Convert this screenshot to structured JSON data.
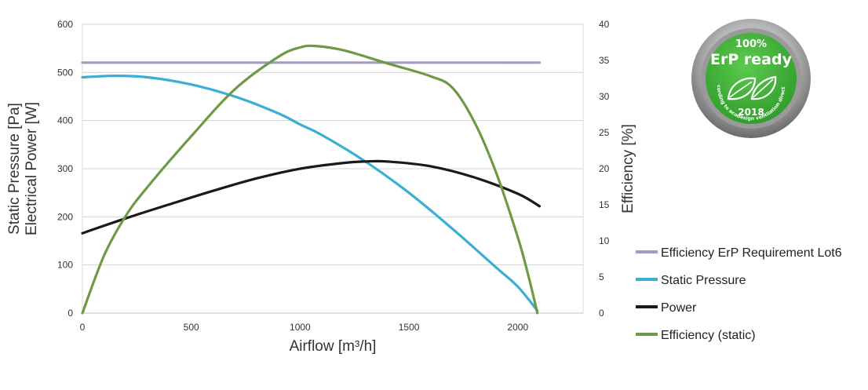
{
  "chart_data": {
    "type": "line",
    "xlabel": "Airflow [m³/h]",
    "ylabel_left": [
      "Static Pressure [Pa]",
      "Electrical Power [W]"
    ],
    "ylabel_right": "Efficiency [%]",
    "xlim": [
      0,
      2300
    ],
    "xticks": [
      0,
      500,
      1000,
      1500,
      2000
    ],
    "ylim_left": [
      0,
      600
    ],
    "yticks_left": [
      0,
      100,
      200,
      300,
      400,
      500,
      600
    ],
    "ylim_right": [
      0,
      40
    ],
    "yticks_right": [
      0,
      5,
      10,
      15,
      20,
      25,
      30,
      35,
      40
    ],
    "grid": "horizontal",
    "legend_position": "right",
    "series": [
      {
        "name": "Efficiency ErP Requirement Lot6",
        "axis": "right",
        "color": "#a09bbf",
        "x": [
          0,
          2100
        ],
        "y": [
          34.7,
          34.7
        ]
      },
      {
        "name": "Static Pressure",
        "axis": "left",
        "color": "#3aaed3",
        "x": [
          0,
          150,
          300,
          500,
          700,
          900,
          1000,
          1100,
          1300,
          1500,
          1700,
          1900,
          2000,
          2090
        ],
        "y": [
          490,
          493,
          490,
          475,
          450,
          415,
          392,
          370,
          315,
          250,
          175,
          95,
          55,
          5
        ]
      },
      {
        "name": "Power",
        "axis": "left",
        "color": "#1a1a1a",
        "x": [
          0,
          200,
          400,
          600,
          800,
          1000,
          1200,
          1300,
          1400,
          1600,
          1800,
          2000,
          2100
        ],
        "y": [
          166,
          197,
          226,
          254,
          280,
          300,
          312,
          315,
          315,
          305,
          282,
          248,
          222
        ]
      },
      {
        "name": "Efficiency (static)",
        "axis": "right",
        "color": "#6e9a45",
        "x": [
          0,
          100,
          200,
          300,
          500,
          700,
          900,
          1000,
          1070,
          1200,
          1400,
          1600,
          1700,
          1800,
          1900,
          2000,
          2050,
          2090
        ],
        "y": [
          0,
          8,
          13.5,
          17.5,
          24.5,
          31,
          35.5,
          36.8,
          37,
          36.4,
          34.6,
          32.8,
          31.2,
          26.5,
          19.5,
          10.5,
          5,
          0
        ]
      }
    ]
  },
  "badge": {
    "line1": "100%",
    "line2": "ErP ready",
    "year": "2018",
    "ring_text": "according to ecodesign ventilation directive",
    "color_green": "#3fae3a",
    "color_ring": "#8c8c8c"
  }
}
